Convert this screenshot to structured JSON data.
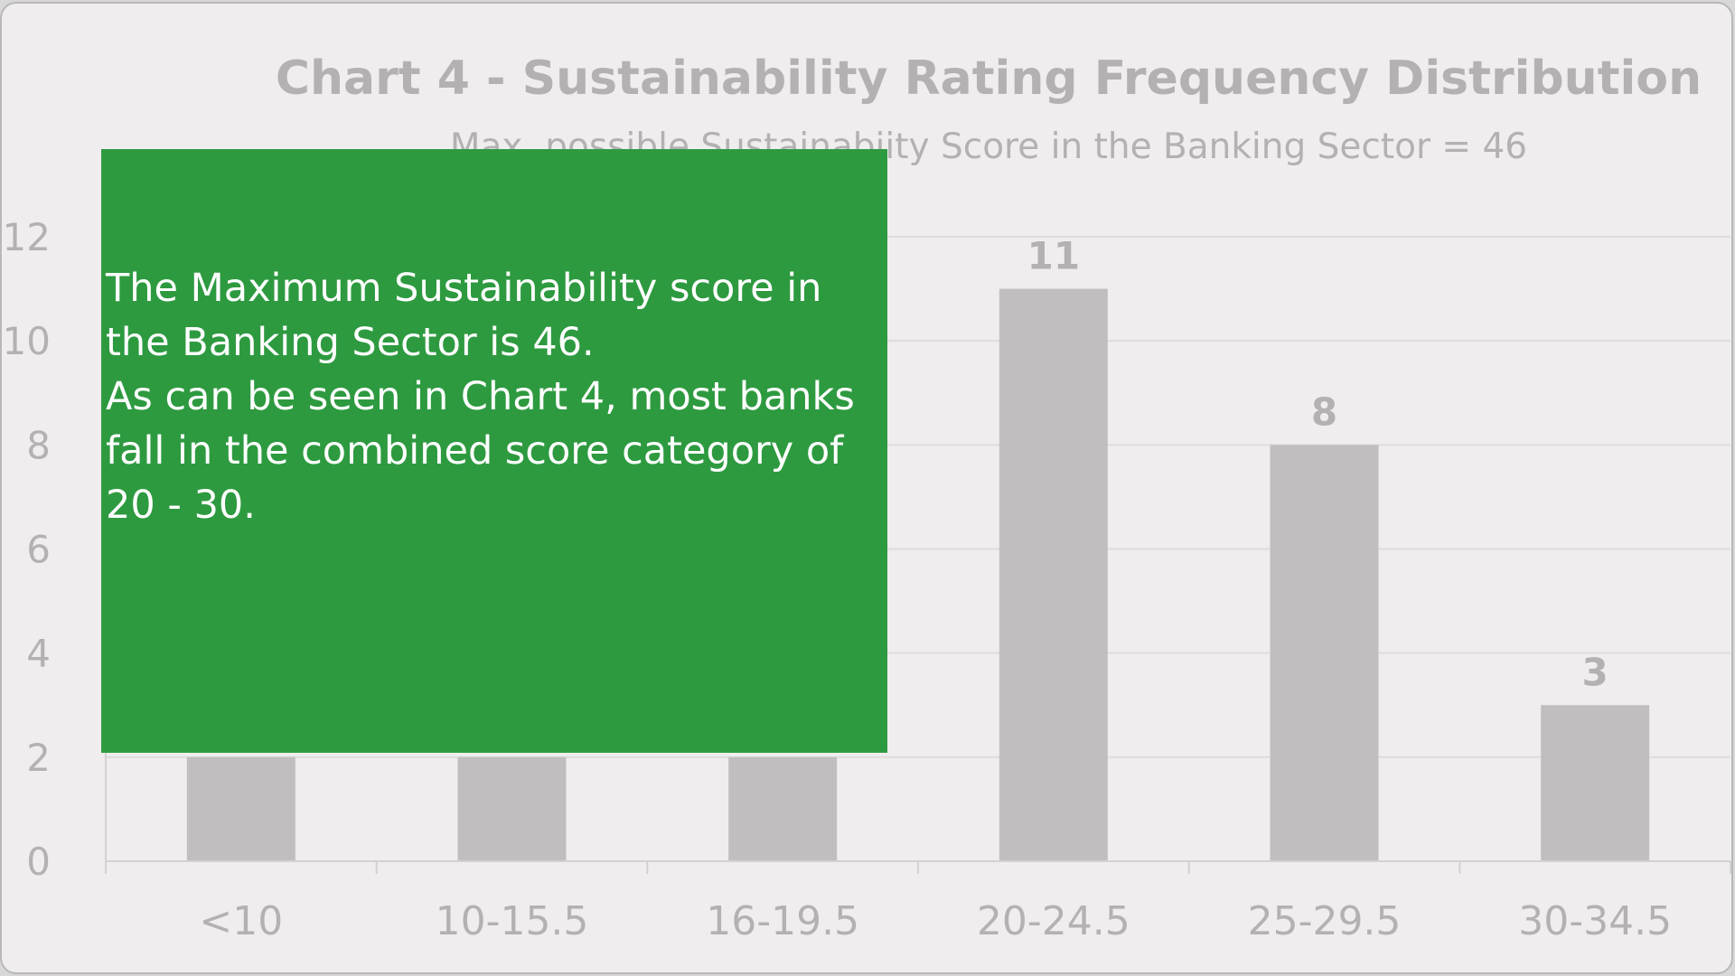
{
  "chart_data": {
    "type": "bar",
    "title": "Chart 4 -  Sustainability Rating Frequency Distribution",
    "subtitle": "Max. possible Sustainabiity Score in the Banking Sector = 46",
    "categories": [
      "<10",
      "10-15.5",
      "16-19.5",
      "20-24.5",
      "25-29.5",
      "30-34.5"
    ],
    "values": [
      null,
      null,
      null,
      11,
      8,
      3
    ],
    "data_labels": [
      "",
      "",
      "",
      "11",
      "8",
      "3"
    ],
    "visible_bar_stub_values": [
      2,
      2,
      2,
      null,
      null,
      null
    ],
    "ylim": [
      0,
      12
    ],
    "yticks": [
      0,
      2,
      4,
      6,
      8,
      10,
      12
    ],
    "grid": true,
    "legend": "none",
    "bar_color": "#c0bebf"
  },
  "callout": {
    "lines": [
      "The Maximum Sustainability score in the Banking Sector is 46.",
      "As can be seen in Chart 4, most banks fall in the combined score category of 20 - 30."
    ],
    "background": "#2e9a40"
  }
}
